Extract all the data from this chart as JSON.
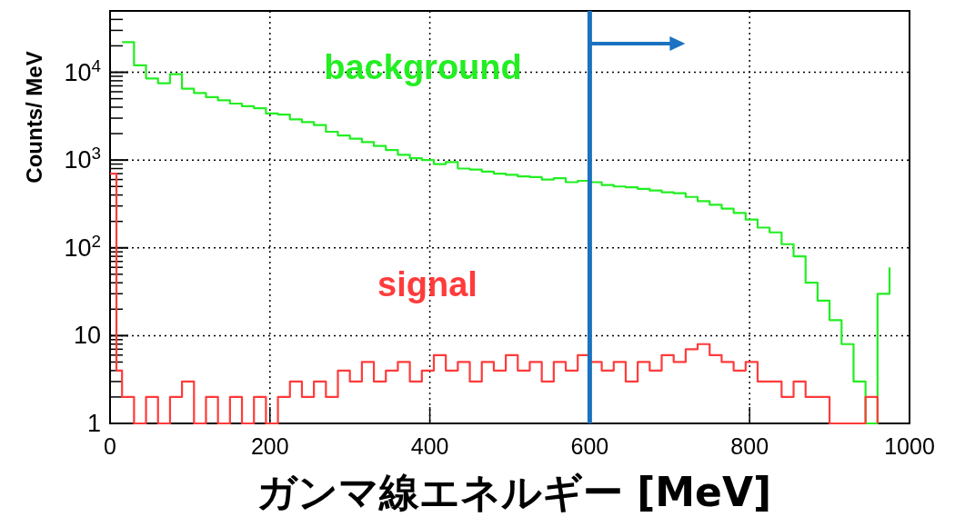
{
  "chart_data": {
    "type": "step",
    "xlabel": "ガンマ線エネルギー [MeV]",
    "ylabel": "Counts/ MeV",
    "log": "y",
    "grid": true,
    "legend": false,
    "xlim": [
      0,
      1000
    ],
    "xticks": [
      0,
      200,
      400,
      600,
      800,
      1000
    ],
    "ylim": [
      1,
      50000
    ],
    "yticks": [
      1,
      10,
      {
        "value": 100,
        "label": "10$^{2}$"
      },
      {
        "value": 1000,
        "label": "10$^{3}$"
      },
      {
        "value": 10000,
        "label": "10$^{4}$"
      }
    ],
    "ref_lines": [
      {
        "axis": "x",
        "value": 600,
        "color": "#1a72c0"
      }
    ],
    "series": [
      {
        "name": "background",
        "color": "#22ee22",
        "x": [
          15,
          30,
          45,
          60,
          75,
          90,
          105,
          120,
          135,
          150,
          165,
          180,
          195,
          210,
          225,
          240,
          255,
          270,
          285,
          300,
          315,
          330,
          345,
          360,
          375,
          390,
          405,
          420,
          435,
          450,
          465,
          480,
          495,
          510,
          525,
          540,
          555,
          570,
          585,
          600,
          615,
          630,
          645,
          660,
          675,
          690,
          705,
          720,
          735,
          750,
          765,
          780,
          795,
          810,
          825,
          840,
          855,
          870,
          885,
          900,
          915,
          930,
          945,
          960,
          975
        ],
        "values": [
          22000,
          12000,
          8500,
          7500,
          9500,
          6500,
          5800,
          5200,
          4800,
          4400,
          4100,
          3900,
          3400,
          3300,
          2900,
          2700,
          2500,
          2100,
          1900,
          1750,
          1600,
          1450,
          1300,
          1150,
          1050,
          1000,
          900,
          950,
          800,
          780,
          740,
          700,
          680,
          650,
          640,
          600,
          620,
          560,
          580,
          560,
          520,
          500,
          490,
          470,
          450,
          430,
          420,
          380,
          340,
          310,
          280,
          250,
          210,
          170,
          150,
          110,
          80,
          40,
          25,
          15,
          8,
          3,
          1,
          30,
          60
        ]
      },
      {
        "name": "signal",
        "color": "#ff3b3b",
        "x": [
          0,
          8,
          15,
          30,
          45,
          60,
          75,
          90,
          105,
          120,
          135,
          150,
          165,
          180,
          195,
          210,
          225,
          240,
          255,
          270,
          285,
          300,
          315,
          330,
          345,
          360,
          375,
          390,
          405,
          420,
          435,
          450,
          465,
          480,
          495,
          510,
          525,
          540,
          555,
          570,
          585,
          600,
          615,
          630,
          645,
          660,
          675,
          690,
          705,
          720,
          735,
          750,
          765,
          780,
          795,
          810,
          825,
          840,
          855,
          870,
          885,
          900,
          915,
          930,
          945,
          960
        ],
        "values": [
          700,
          4,
          2,
          1,
          2,
          1,
          2,
          3,
          1,
          2,
          1,
          2,
          1,
          2,
          1,
          2,
          3,
          2,
          3,
          2,
          4,
          3,
          5,
          3,
          4,
          5,
          3,
          4,
          6,
          4,
          5,
          3,
          5,
          4,
          6,
          4,
          5,
          3,
          5,
          4,
          6,
          5,
          4,
          5,
          3,
          5,
          4,
          6,
          5,
          7,
          8,
          6,
          5,
          4,
          5,
          3,
          3,
          2,
          3,
          2,
          2,
          1,
          1,
          1,
          2,
          1
        ]
      }
    ]
  }
}
